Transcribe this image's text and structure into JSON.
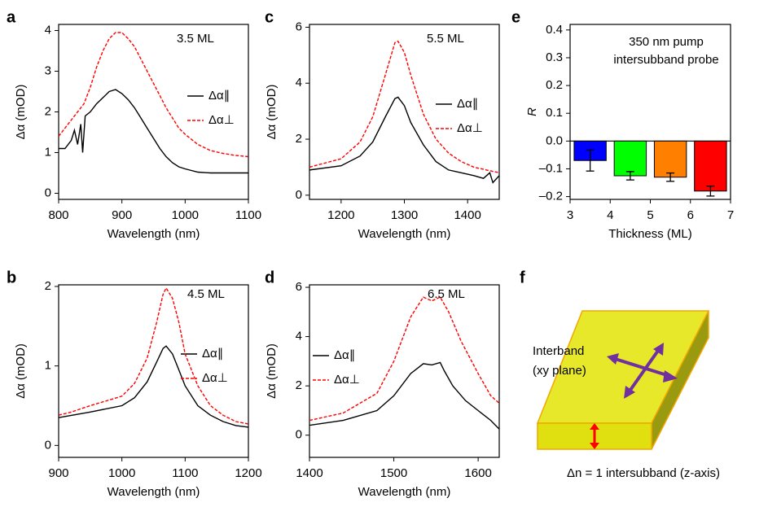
{
  "chart_data": [
    {
      "type": "line",
      "panel_label": "a",
      "annotation": "3.5 ML",
      "xlabel": "Wavelength (nm)",
      "ylabel": "Δα (mOD)",
      "xlim": [
        800,
        1100
      ],
      "ylim": [
        -0.15,
        4.15
      ],
      "xticks": [
        800,
        900,
        1000,
        1100
      ],
      "yticks": [
        0,
        1,
        2,
        3,
        4
      ],
      "series": [
        {
          "name": "Δα∥",
          "color": "#000000",
          "dash": false,
          "x": [
            800,
            810,
            820,
            825,
            830,
            835,
            838,
            842,
            850,
            860,
            870,
            880,
            890,
            900,
            910,
            920,
            930,
            940,
            950,
            960,
            970,
            980,
            990,
            1000,
            1020,
            1040,
            1060,
            1080,
            1100
          ],
          "values": [
            1.1,
            1.1,
            1.3,
            1.55,
            1.2,
            1.7,
            1.0,
            1.9,
            2.0,
            2.2,
            2.35,
            2.5,
            2.55,
            2.45,
            2.3,
            2.1,
            1.85,
            1.6,
            1.35,
            1.1,
            0.9,
            0.75,
            0.65,
            0.6,
            0.52,
            0.5,
            0.5,
            0.5,
            0.5
          ]
        },
        {
          "name": "Δα⊥",
          "color": "#ff0000",
          "dash": true,
          "x": [
            800,
            820,
            840,
            850,
            860,
            870,
            880,
            890,
            900,
            910,
            920,
            930,
            940,
            950,
            960,
            970,
            980,
            990,
            1000,
            1020,
            1040,
            1060,
            1080,
            1100
          ],
          "values": [
            1.4,
            1.8,
            2.2,
            2.6,
            3.1,
            3.5,
            3.8,
            3.95,
            3.95,
            3.8,
            3.6,
            3.3,
            3.0,
            2.7,
            2.4,
            2.1,
            1.85,
            1.6,
            1.45,
            1.2,
            1.05,
            0.98,
            0.93,
            0.9
          ]
        }
      ]
    },
    {
      "type": "line",
      "panel_label": "b",
      "annotation": "4.5 ML",
      "xlabel": "Wavelength (nm)",
      "ylabel": "Δα (mOD)",
      "xlim": [
        900,
        1200
      ],
      "ylim": [
        -0.15,
        2.02
      ],
      "xticks": [
        900,
        1000,
        1100,
        1200
      ],
      "yticks": [
        0,
        1,
        2
      ],
      "series": [
        {
          "name": "Δα∥",
          "color": "#000000",
          "dash": false,
          "x": [
            900,
            950,
            1000,
            1020,
            1040,
            1055,
            1065,
            1070,
            1080,
            1090,
            1100,
            1120,
            1140,
            1160,
            1180,
            1200
          ],
          "values": [
            0.35,
            0.42,
            0.5,
            0.6,
            0.8,
            1.05,
            1.22,
            1.25,
            1.15,
            0.95,
            0.75,
            0.5,
            0.38,
            0.3,
            0.25,
            0.23
          ]
        },
        {
          "name": "Δα⊥",
          "color": "#ff0000",
          "dash": true,
          "x": [
            900,
            920,
            950,
            1000,
            1020,
            1040,
            1055,
            1065,
            1070,
            1080,
            1090,
            1100,
            1120,
            1140,
            1160,
            1180,
            1200
          ],
          "values": [
            0.38,
            0.42,
            0.5,
            0.62,
            0.78,
            1.1,
            1.55,
            1.9,
            1.98,
            1.85,
            1.55,
            1.15,
            0.75,
            0.5,
            0.38,
            0.3,
            0.27
          ]
        }
      ]
    },
    {
      "type": "line",
      "panel_label": "c",
      "annotation": "5.5 ML",
      "xlabel": "Wavelength (nm)",
      "ylabel": "Δα (mOD)",
      "xlim": [
        1150,
        1450
      ],
      "ylim": [
        -0.15,
        6.1
      ],
      "xticks": [
        1200,
        1300,
        1400
      ],
      "yticks": [
        0,
        2,
        4,
        6
      ],
      "series": [
        {
          "name": "Δα∥",
          "color": "#000000",
          "dash": false,
          "x": [
            1150,
            1200,
            1230,
            1250,
            1270,
            1285,
            1290,
            1300,
            1310,
            1330,
            1350,
            1370,
            1390,
            1410,
            1425,
            1435,
            1440,
            1450
          ],
          "values": [
            0.9,
            1.05,
            1.4,
            1.9,
            2.8,
            3.45,
            3.5,
            3.2,
            2.6,
            1.8,
            1.2,
            0.9,
            0.8,
            0.7,
            0.6,
            0.8,
            0.45,
            0.7
          ]
        },
        {
          "name": "Δα⊥",
          "color": "#ff0000",
          "dash": true,
          "x": [
            1150,
            1200,
            1230,
            1250,
            1270,
            1285,
            1290,
            1300,
            1310,
            1330,
            1350,
            1370,
            1390,
            1410,
            1430,
            1450
          ],
          "values": [
            1.0,
            1.3,
            1.9,
            2.8,
            4.3,
            5.45,
            5.5,
            5.1,
            4.3,
            2.9,
            2.0,
            1.5,
            1.2,
            1.0,
            0.9,
            0.8
          ]
        }
      ]
    },
    {
      "type": "line",
      "panel_label": "d",
      "annotation": "6.5 ML",
      "xlabel": "Wavelength (nm)",
      "ylabel": "Δα (mOD)",
      "xlim": [
        1400,
        1625
      ],
      "ylim": [
        -0.9,
        6.1
      ],
      "xticks": [
        1400,
        1500,
        1600
      ],
      "yticks": [
        0,
        2,
        4,
        6
      ],
      "series": [
        {
          "name": "Δα∥",
          "color": "#000000",
          "dash": false,
          "x": [
            1400,
            1440,
            1480,
            1500,
            1520,
            1535,
            1545,
            1555,
            1560,
            1570,
            1585,
            1600,
            1615,
            1625
          ],
          "values": [
            0.4,
            0.6,
            1.0,
            1.6,
            2.5,
            2.9,
            2.85,
            2.95,
            2.6,
            2.0,
            1.4,
            1.0,
            0.6,
            0.25
          ]
        },
        {
          "name": "Δα⊥",
          "color": "#ff0000",
          "dash": true,
          "x": [
            1400,
            1440,
            1480,
            1500,
            1520,
            1535,
            1545,
            1555,
            1565,
            1580,
            1600,
            1615,
            1625
          ],
          "values": [
            0.6,
            0.9,
            1.7,
            3.0,
            4.8,
            5.6,
            5.45,
            5.6,
            5.0,
            3.8,
            2.5,
            1.6,
            1.3
          ]
        }
      ]
    },
    {
      "type": "bar",
      "panel_label": "e",
      "annotation": [
        "350 nm pump",
        "intersubband probe"
      ],
      "xlabel": "Thickness (ML)",
      "ylabel": "R",
      "xlim": [
        3,
        7
      ],
      "ylim": [
        -0.21,
        0.42
      ],
      "xticks": [
        3,
        4,
        5,
        6,
        7
      ],
      "yticks": [
        {
          "value": -0.2,
          "label": "–0.2"
        },
        {
          "value": -0.1,
          "label": "–0.1"
        },
        {
          "value": 0,
          "label": "0.0"
        },
        0.1,
        0.2,
        0.3,
        0.4
      ],
      "x": [
        3.5,
        4.5,
        5.5,
        6.5
      ],
      "values": [
        -0.07,
        -0.125,
        -0.13,
        -0.18
      ],
      "errors": [
        0.038,
        0.015,
        0.015,
        0.018
      ],
      "colors": [
        "#0000ff",
        "#00ff00",
        "#ff8000",
        "#ff0000"
      ]
    }
  ],
  "diagram": {
    "panel_label": "f",
    "labels": [
      "Interband",
      "(xy plane)",
      "Δn = 1 intersubband (z-axis)"
    ]
  }
}
